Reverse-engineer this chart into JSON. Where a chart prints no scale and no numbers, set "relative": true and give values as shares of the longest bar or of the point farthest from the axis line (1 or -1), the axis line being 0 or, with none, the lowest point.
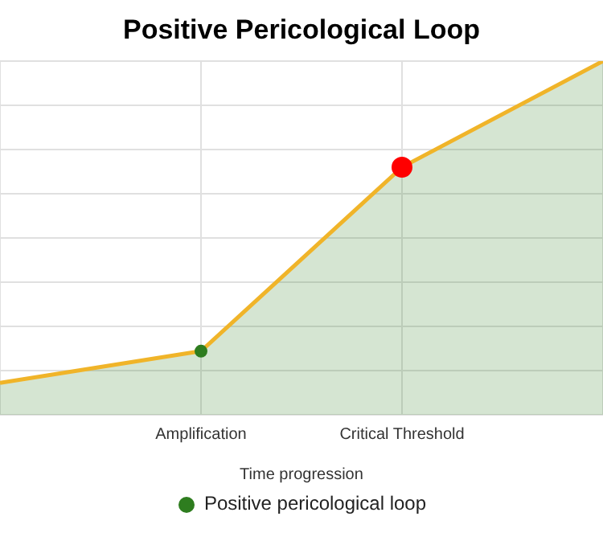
{
  "chart_data": {
    "type": "area",
    "title": "Positive Pericological Loop",
    "xlabel": "Time progression",
    "relative": true,
    "categories": [
      null,
      "Amplification",
      "Critical Threshold",
      null
    ],
    "series": [
      {
        "name": "Positive pericological loop",
        "color": "#f0b429",
        "values": [
          0.09,
          0.18,
          0.7,
          1
        ],
        "colors": [
          null,
          "#2e7d1f",
          "#ff0000",
          null
        ]
      }
    ],
    "grid": true,
    "legend": "bottom",
    "marker": "circle"
  }
}
